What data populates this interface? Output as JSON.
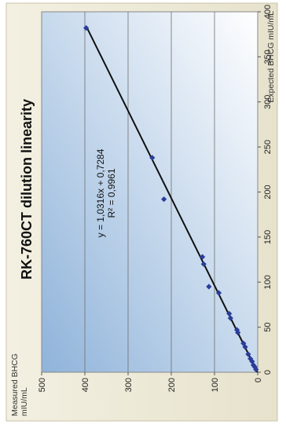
{
  "chart_data": {
    "type": "scatter",
    "title": "RK-760CT dilution linearity",
    "xlabel": "Expected BHCG mIU/mL",
    "ylabel": "Measured BHCG mIU/mL",
    "xlim": [
      0,
      400
    ],
    "ylim": [
      0,
      500
    ],
    "xticks": [
      0,
      50,
      100,
      150,
      200,
      250,
      300,
      350,
      400
    ],
    "yticks": [
      0,
      100,
      200,
      300,
      400,
      500
    ],
    "grid": "horizontal",
    "orientation": "rotated 90 degrees counter-clockwise",
    "series": [
      {
        "points": [
          {
            "x": 3,
            "y": 4
          },
          {
            "x": 6,
            "y": 7
          },
          {
            "x": 8,
            "y": 10
          },
          {
            "x": 12,
            "y": 13
          },
          {
            "x": 15,
            "y": 17
          },
          {
            "x": 20,
            "y": 22
          },
          {
            "x": 28,
            "y": 29
          },
          {
            "x": 32,
            "y": 33
          },
          {
            "x": 44,
            "y": 46
          },
          {
            "x": 47,
            "y": 48
          },
          {
            "x": 60,
            "y": 63
          },
          {
            "x": 65,
            "y": 66
          },
          {
            "x": 88,
            "y": 90
          },
          {
            "x": 95,
            "y": 113
          },
          {
            "x": 120,
            "y": 125
          },
          {
            "x": 128,
            "y": 128
          },
          {
            "x": 192,
            "y": 217
          },
          {
            "x": 238,
            "y": 244
          },
          {
            "x": 382,
            "y": 397
          }
        ]
      }
    ],
    "trendline": {
      "slope": 1.0316,
      "intercept": 0.7284
    },
    "equation_text": "y = 1,0316x + 0,7284",
    "r2_text": "R² = 0,9961",
    "colors": {
      "point": "#2b3d9a",
      "line": "#111111",
      "plot_bg_light": "#ffffff",
      "plot_bg_dark": "#8fb3da",
      "frame_bg": "#ece8d6",
      "grid": "#6f6f6f"
    }
  }
}
